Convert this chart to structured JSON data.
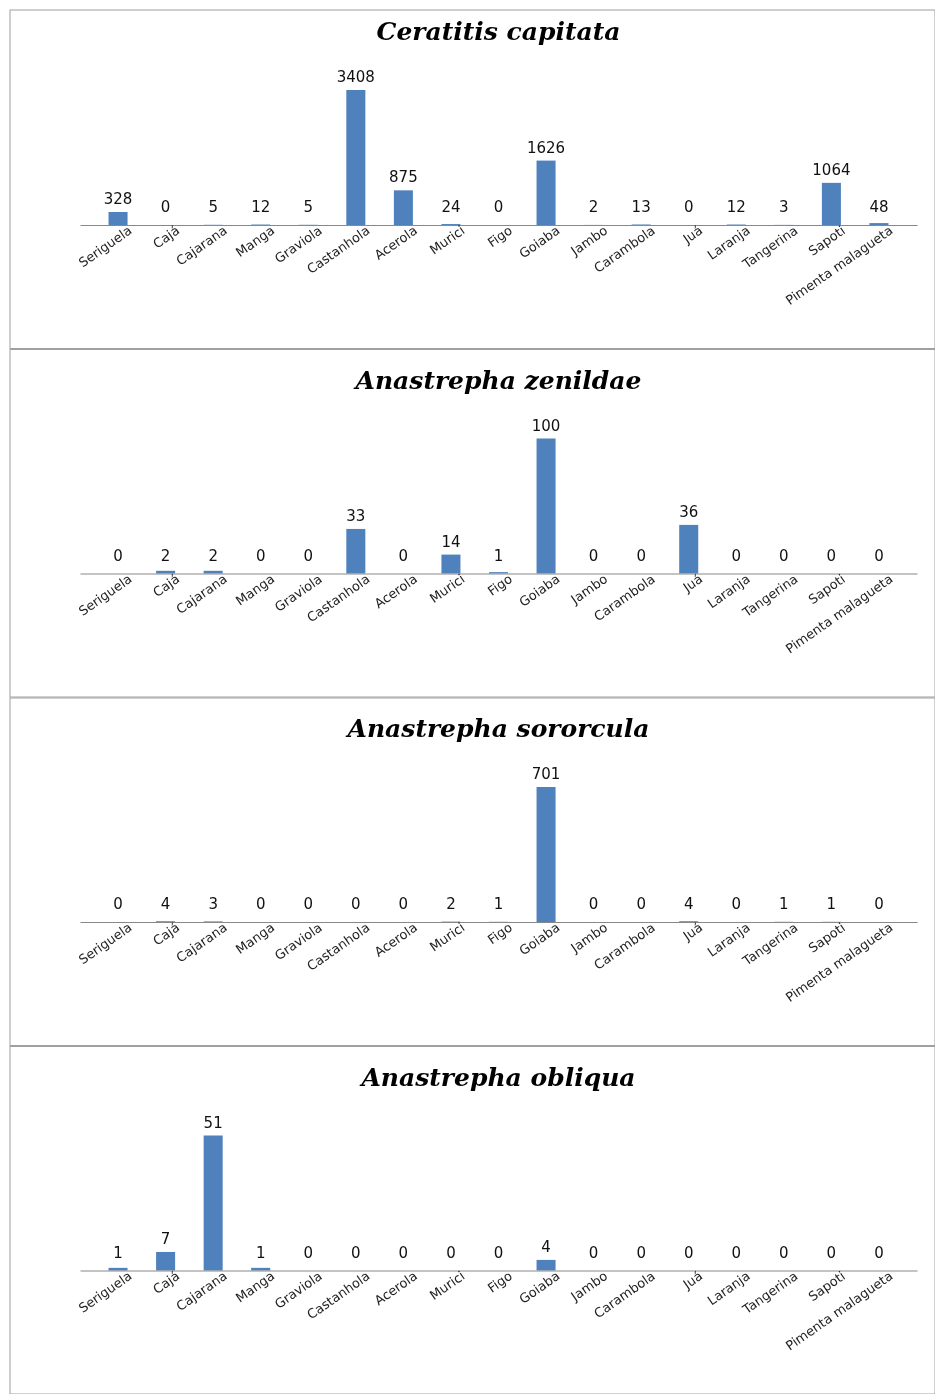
{
  "chart_data": [
    {
      "type": "bar",
      "title": "Ceratitis capitata",
      "categories": [
        "Seriguela",
        "Cajá",
        "Cajarana",
        "Manga",
        "Graviola",
        "Castanhola",
        "Acerola",
        "Murici",
        "Figo",
        "Goiaba",
        "Jambo",
        "Carambola",
        "Juá",
        "Laranja",
        "Tangerina",
        "Sapoti",
        "Pimenta malagueta"
      ],
      "values": [
        328,
        0,
        5,
        12,
        5,
        3408,
        875,
        24,
        0,
        1626,
        2,
        13,
        0,
        12,
        3,
        1064,
        48
      ],
      "color": "#4f81bd",
      "data_labels": true,
      "tick_labels": "x"
    },
    {
      "type": "bar",
      "title": "Anastrepha zenildae",
      "categories": [
        "Seriguela",
        "Cajá",
        "Cajarana",
        "Manga",
        "Graviola",
        "Castanhola",
        "Acerola",
        "Murici",
        "Figo",
        "Goiaba",
        "Jambo",
        "Carambola",
        "Juá",
        "Laranja",
        "Tangerina",
        "Sapoti",
        "Pimenta malagueta"
      ],
      "values": [
        0,
        2,
        2,
        0,
        0,
        33,
        0,
        14,
        1,
        100,
        0,
        0,
        36,
        0,
        0,
        0,
        0
      ],
      "color": "#4f81bd",
      "data_labels": true,
      "tick_labels": "x"
    },
    {
      "type": "bar",
      "title": "Anastrepha sororcula",
      "categories": [
        "Seriguela",
        "Cajá",
        "Cajarana",
        "Manga",
        "Graviola",
        "Castanhola",
        "Acerola",
        "Murici",
        "Figo",
        "Goiaba",
        "Jambo",
        "Carambola",
        "Juá",
        "Laranja",
        "Tangerina",
        "Sapoti",
        "Pimenta malagueta"
      ],
      "values": [
        0,
        4,
        3,
        0,
        0,
        0,
        0,
        2,
        1,
        701,
        0,
        0,
        4,
        0,
        1,
        1,
        0
      ],
      "color": "#4f81bd",
      "data_labels": true,
      "tick_labels": "x"
    },
    {
      "type": "bar",
      "title": "Anastrepha obliqua",
      "categories": [
        "Seriguela",
        "Cajá",
        "Cajarana",
        "Manga",
        "Graviola",
        "Castanhola",
        "Acerola",
        "Murici",
        "Figo",
        "Goiaba",
        "Jambo",
        "Carambola",
        "Juá",
        "Laranja",
        "Tangerina",
        "Sapoti",
        "Pimenta malagueta"
      ],
      "values": [
        1,
        7,
        51,
        1,
        0,
        0,
        0,
        0,
        0,
        4,
        0,
        0,
        0,
        0,
        0,
        0,
        0
      ],
      "color": "#4f81bd",
      "data_labels": true,
      "tick_labels": "x"
    }
  ]
}
